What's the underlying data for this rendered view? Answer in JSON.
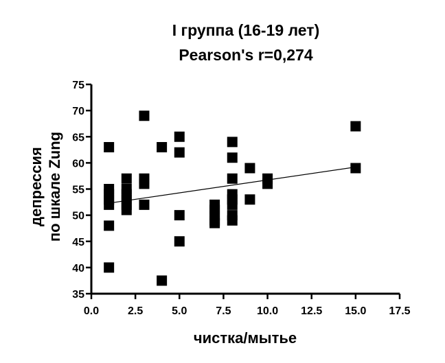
{
  "chart_data": {
    "type": "scatter",
    "title": "I группа (16-19 лет)",
    "subtitle": "Pearson's r=0,274",
    "xlabel": "чистка/мытье",
    "ylabel": [
      "депрессия",
      "по шкале Zung"
    ],
    "xlim": [
      0,
      17.5
    ],
    "ylim": [
      35,
      75
    ],
    "x_ticks": [
      "0.0",
      "2.5",
      "5.0",
      "7.5",
      "10.0",
      "12.5",
      "15.0",
      "17.5"
    ],
    "y_ticks": [
      "35",
      "40",
      "45",
      "50",
      "55",
      "60",
      "65",
      "70",
      "75"
    ],
    "grid": false,
    "marker": "square",
    "marker_color": "#000000",
    "points": [
      {
        "x": 1,
        "y": 63
      },
      {
        "x": 1,
        "y": 55
      },
      {
        "x": 1,
        "y": 54
      },
      {
        "x": 1,
        "y": 53
      },
      {
        "x": 1,
        "y": 52
      },
      {
        "x": 1,
        "y": 48
      },
      {
        "x": 1,
        "y": 40
      },
      {
        "x": 2,
        "y": 57
      },
      {
        "x": 2,
        "y": 55
      },
      {
        "x": 2,
        "y": 54
      },
      {
        "x": 2,
        "y": 53
      },
      {
        "x": 2,
        "y": 52
      },
      {
        "x": 2,
        "y": 51
      },
      {
        "x": 3,
        "y": 69
      },
      {
        "x": 3,
        "y": 57
      },
      {
        "x": 3,
        "y": 56
      },
      {
        "x": 3,
        "y": 52
      },
      {
        "x": 4,
        "y": 63
      },
      {
        "x": 4,
        "y": 37.5
      },
      {
        "x": 5,
        "y": 65
      },
      {
        "x": 5,
        "y": 62
      },
      {
        "x": 5,
        "y": 50
      },
      {
        "x": 5,
        "y": 45
      },
      {
        "x": 7,
        "y": 52
      },
      {
        "x": 7,
        "y": 51
      },
      {
        "x": 7,
        "y": 50
      },
      {
        "x": 7,
        "y": 49
      },
      {
        "x": 7,
        "y": 48.5
      },
      {
        "x": 8,
        "y": 64
      },
      {
        "x": 8,
        "y": 61
      },
      {
        "x": 8,
        "y": 57
      },
      {
        "x": 8,
        "y": 54
      },
      {
        "x": 8,
        "y": 53
      },
      {
        "x": 8,
        "y": 52
      },
      {
        "x": 8,
        "y": 50
      },
      {
        "x": 8,
        "y": 49
      },
      {
        "x": 9,
        "y": 59
      },
      {
        "x": 9,
        "y": 53
      },
      {
        "x": 10,
        "y": 57
      },
      {
        "x": 10,
        "y": 56
      },
      {
        "x": 15,
        "y": 67
      },
      {
        "x": 15,
        "y": 59
      }
    ],
    "regression_line": {
      "x": [
        1,
        15
      ],
      "y": [
        52.3,
        59.2
      ]
    }
  }
}
